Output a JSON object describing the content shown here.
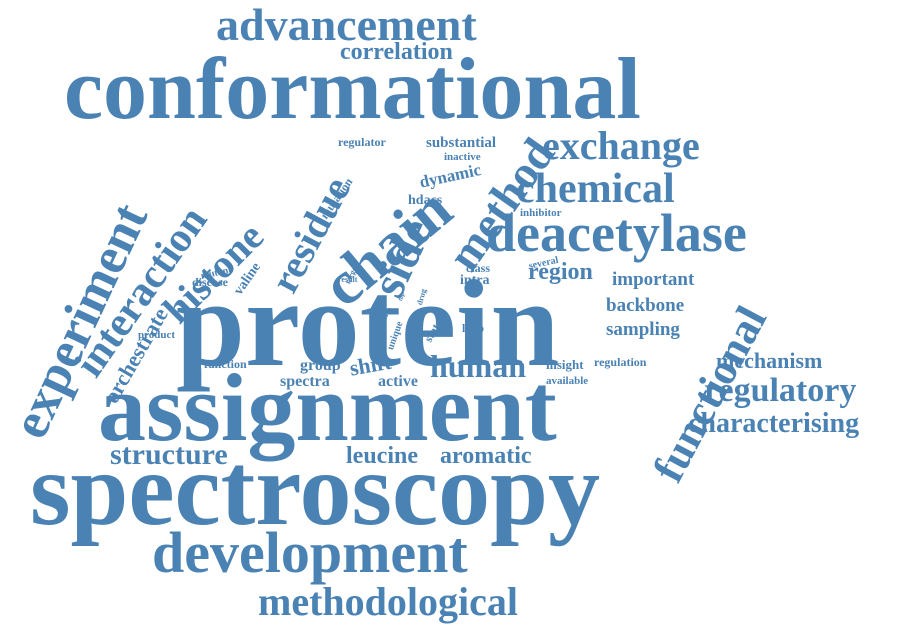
{
  "color": "#4a82b4",
  "words": [
    "advancement",
    "correlation",
    "conformational",
    "exchange",
    "chemical",
    "deacetylase",
    "region",
    "important",
    "backbone",
    "sampling",
    "mechanism",
    "regulatory",
    "characterising",
    "functional",
    "substantial",
    "regulator",
    "inactive",
    "dynamic",
    "hdacs",
    "inhibitor",
    "several",
    "class",
    "intra",
    "chain",
    "method",
    "side",
    "residue",
    "mutation",
    "histone",
    "valine",
    "mutant",
    "disease",
    "interaction",
    "orchestrate",
    "experiment",
    "protein",
    "product",
    "function",
    "group",
    "spectra",
    "shift",
    "active",
    "human",
    "insight",
    "regulation",
    "available",
    "loop",
    "state",
    "distal",
    "unique",
    "target",
    "result",
    "acid",
    "drug",
    "site",
    "top",
    "assignment",
    "structure",
    "leucine",
    "aromatic",
    "spectroscopy",
    "development",
    "methodological"
  ]
}
